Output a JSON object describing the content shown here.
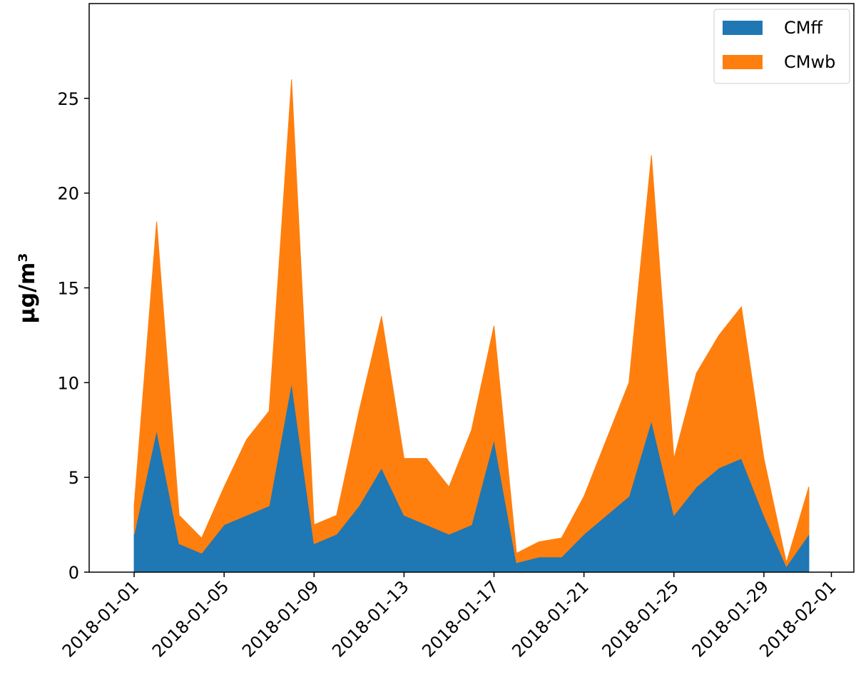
{
  "chart_data": {
    "type": "stacked_area",
    "ylabel": "μg/m³",
    "x": [
      "2018-01-01",
      "2018-01-02",
      "2018-01-03",
      "2018-01-04",
      "2018-01-05",
      "2018-01-06",
      "2018-01-07",
      "2018-01-08",
      "2018-01-09",
      "2018-01-10",
      "2018-01-11",
      "2018-01-12",
      "2018-01-13",
      "2018-01-14",
      "2018-01-15",
      "2018-01-16",
      "2018-01-17",
      "2018-01-18",
      "2018-01-19",
      "2018-01-20",
      "2018-01-21",
      "2018-01-22",
      "2018-01-23",
      "2018-01-24",
      "2018-01-25",
      "2018-01-26",
      "2018-01-27",
      "2018-01-28",
      "2018-01-29",
      "2018-01-30",
      "2018-01-31"
    ],
    "series": [
      {
        "name": "CMff",
        "color": "#1f77b4",
        "values": [
          2,
          7.5,
          1.5,
          1,
          2.5,
          3,
          3.5,
          10,
          1.5,
          2,
          3.5,
          5.5,
          3,
          2.5,
          2,
          2.5,
          7,
          0.5,
          0.8,
          0.8,
          2,
          3,
          4,
          8,
          3,
          4.5,
          5.5,
          6,
          3,
          0.3,
          2
        ]
      },
      {
        "name": "CMwb",
        "color": "#ff7f0e",
        "values": [
          1.5,
          11,
          1.5,
          0.8,
          2,
          4,
          5,
          16,
          1,
          1,
          5,
          8,
          3,
          3.5,
          2.5,
          5,
          6,
          0.5,
          0.8,
          1,
          2,
          4,
          6,
          14,
          3,
          6,
          7,
          8,
          3,
          0.2,
          2.5
        ]
      }
    ],
    "xlim": [
      "2017-12-30",
      "2018-02-02"
    ],
    "xticks": [
      "2018-01-01",
      "2018-01-05",
      "2018-01-09",
      "2018-01-13",
      "2018-01-17",
      "2018-01-21",
      "2018-01-25",
      "2018-01-29",
      "2018-02-01"
    ],
    "ylim": [
      0,
      30
    ],
    "yticks": [
      0,
      5,
      10,
      15,
      20,
      25
    ],
    "legend": "upper right"
  }
}
